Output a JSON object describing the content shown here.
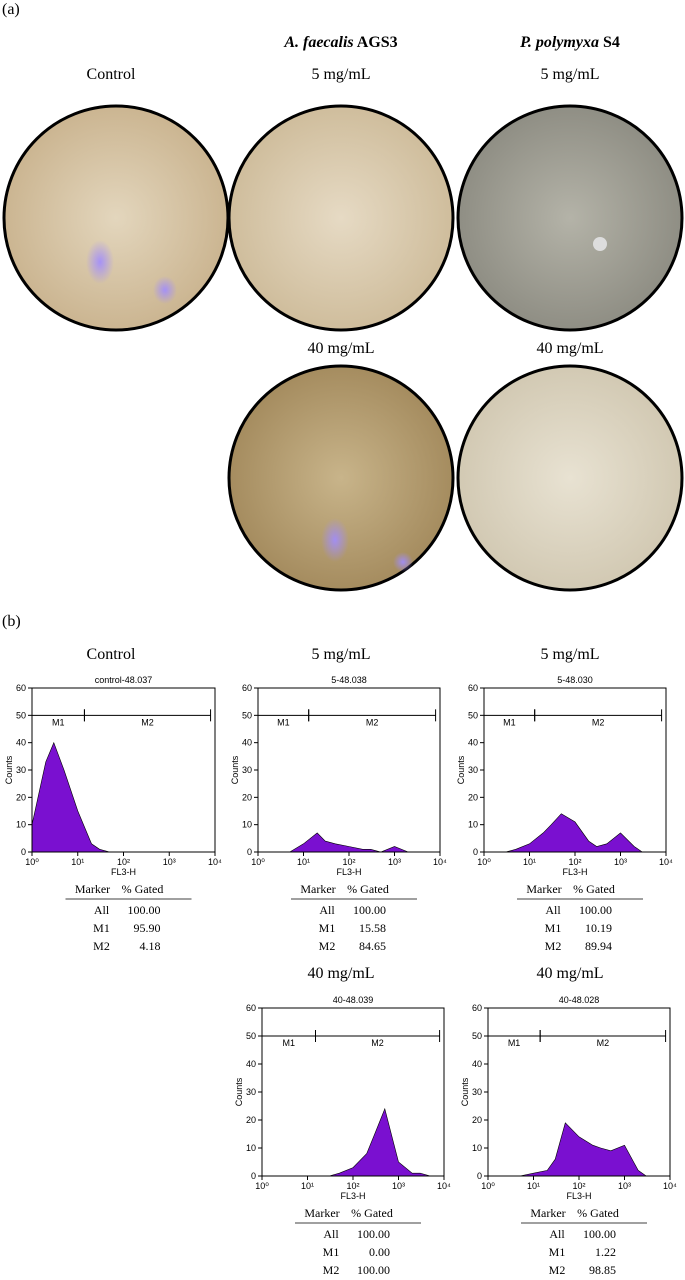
{
  "panel_a": {
    "label": "(a)",
    "headers": [
      {
        "species": "A. faecalis",
        "strain": "AGS3"
      },
      {
        "species": "P. polymyxa",
        "strain": "S4"
      }
    ],
    "images": [
      {
        "label": "Control"
      },
      {
        "label": "5 mg/mL"
      },
      {
        "label": "5 mg/mL"
      },
      {
        "label": "40 mg/mL"
      },
      {
        "label": "40 mg/mL"
      }
    ]
  },
  "panel_b": {
    "label": "(b)"
  },
  "chart_data": [
    {
      "type": "area",
      "heading": "Control",
      "title": "control-48.037",
      "x_label": "FL3-H",
      "y_label": "Counts",
      "color": "#7a10d0",
      "log_x": true,
      "x": [
        1,
        2,
        3,
        5,
        10,
        20,
        30,
        50,
        100,
        200,
        300,
        500,
        1000,
        2000,
        3000,
        5000,
        10000
      ],
      "values": [
        10,
        33,
        40,
        30,
        15,
        3,
        1,
        0,
        0,
        0,
        0,
        0,
        0,
        0,
        0,
        0,
        0
      ],
      "xlim": [
        1,
        10000
      ],
      "ylim": [
        0,
        60
      ],
      "yticks": [
        0,
        10,
        20,
        30,
        40,
        50,
        60
      ],
      "xticks": [
        {
          "value": 1,
          "label": "10⁰"
        },
        {
          "value": 10,
          "label": "10¹"
        },
        {
          "value": 100,
          "label": "10²"
        },
        {
          "value": 1000,
          "label": "10³"
        },
        {
          "value": 10000,
          "label": "10⁴"
        }
      ],
      "gates": [
        {
          "name": "M1",
          "range": [
            1,
            14
          ]
        },
        {
          "name": "M2",
          "range": [
            14,
            8000
          ]
        }
      ],
      "table": {
        "header": [
          "Marker",
          "% Gated"
        ],
        "rows": [
          [
            "All",
            "100.00"
          ],
          [
            "M1",
            "95.90"
          ],
          [
            "M2",
            "4.18"
          ]
        ]
      }
    },
    {
      "type": "area",
      "heading": "5 mg/mL",
      "title": "5-48.038",
      "x_label": "FL3-H",
      "y_label": "Counts",
      "color": "#7a10d0",
      "log_x": true,
      "x": [
        1,
        2,
        3,
        5,
        10,
        20,
        30,
        50,
        100,
        200,
        300,
        500,
        1000,
        2000,
        3000,
        5000,
        10000
      ],
      "values": [
        0,
        0,
        0,
        0,
        3,
        7,
        4,
        3,
        2,
        1,
        1,
        0,
        2,
        0,
        0,
        0,
        0
      ],
      "xlim": [
        1,
        10000
      ],
      "ylim": [
        0,
        60
      ],
      "yticks": [
        0,
        10,
        20,
        30,
        40,
        50,
        60
      ],
      "xticks": [
        {
          "value": 1,
          "label": "10⁰"
        },
        {
          "value": 10,
          "label": "10¹"
        },
        {
          "value": 100,
          "label": "10²"
        },
        {
          "value": 1000,
          "label": "10³"
        },
        {
          "value": 10000,
          "label": "10⁴"
        }
      ],
      "gates": [
        {
          "name": "M1",
          "range": [
            1,
            13
          ]
        },
        {
          "name": "M2",
          "range": [
            13,
            8000
          ]
        }
      ],
      "table": {
        "header": [
          "Marker",
          "% Gated"
        ],
        "rows": [
          [
            "All",
            "100.00"
          ],
          [
            "M1",
            "15.58"
          ],
          [
            "M2",
            "84.65"
          ]
        ]
      }
    },
    {
      "type": "area",
      "heading": "5 mg/mL",
      "title": "5-48.030",
      "x_label": "FL3-H",
      "y_label": "Counts",
      "color": "#7a10d0",
      "log_x": true,
      "x": [
        1,
        2,
        3,
        5,
        10,
        20,
        30,
        50,
        100,
        200,
        300,
        500,
        1000,
        2000,
        3000,
        5000,
        10000
      ],
      "values": [
        0,
        0,
        0,
        1,
        3,
        7,
        10,
        14,
        11,
        4,
        2,
        3,
        7,
        2,
        0,
        0,
        0
      ],
      "xlim": [
        1,
        10000
      ],
      "ylim": [
        0,
        60
      ],
      "yticks": [
        0,
        10,
        20,
        30,
        40,
        50,
        60
      ],
      "xticks": [
        {
          "value": 1,
          "label": "10⁰"
        },
        {
          "value": 10,
          "label": "10¹"
        },
        {
          "value": 100,
          "label": "10²"
        },
        {
          "value": 1000,
          "label": "10³"
        },
        {
          "value": 10000,
          "label": "10⁴"
        }
      ],
      "gates": [
        {
          "name": "M1",
          "range": [
            1,
            13
          ]
        },
        {
          "name": "M2",
          "range": [
            13,
            8000
          ]
        }
      ],
      "table": {
        "header": [
          "Marker",
          "% Gated"
        ],
        "rows": [
          [
            "All",
            "100.00"
          ],
          [
            "M1",
            "10.19"
          ],
          [
            "M2",
            "89.94"
          ]
        ]
      }
    },
    {
      "type": "area",
      "heading": "40 mg/mL",
      "title": "40-48.039",
      "x_label": "FL3-H",
      "y_label": "Counts",
      "color": "#7a10d0",
      "log_x": true,
      "x": [
        1,
        2,
        3,
        5,
        10,
        20,
        30,
        50,
        100,
        200,
        300,
        500,
        1000,
        2000,
        3000,
        5000,
        10000
      ],
      "values": [
        0,
        0,
        0,
        0,
        0,
        0,
        0,
        1,
        3,
        8,
        15,
        24,
        5,
        1,
        1,
        0,
        0
      ],
      "xlim": [
        1,
        10000
      ],
      "ylim": [
        0,
        60
      ],
      "yticks": [
        0,
        10,
        20,
        30,
        40,
        50,
        60
      ],
      "xticks": [
        {
          "value": 1,
          "label": "10⁰"
        },
        {
          "value": 10,
          "label": "10¹"
        },
        {
          "value": 100,
          "label": "10²"
        },
        {
          "value": 1000,
          "label": "10³"
        },
        {
          "value": 10000,
          "label": "10⁴"
        }
      ],
      "gates": [
        {
          "name": "M1",
          "range": [
            1,
            15
          ]
        },
        {
          "name": "M2",
          "range": [
            15,
            8000
          ]
        }
      ],
      "table": {
        "header": [
          "Marker",
          "% Gated"
        ],
        "rows": [
          [
            "All",
            "100.00"
          ],
          [
            "M1",
            "0.00"
          ],
          [
            "M2",
            "100.00"
          ]
        ]
      }
    },
    {
      "type": "area",
      "heading": "40 mg/mL",
      "title": "40-48.028",
      "x_label": "FL3-H",
      "y_label": "Counts",
      "color": "#7a10d0",
      "log_x": true,
      "x": [
        1,
        2,
        3,
        5,
        10,
        20,
        30,
        50,
        100,
        200,
        300,
        500,
        1000,
        2000,
        3000,
        5000,
        10000
      ],
      "values": [
        0,
        0,
        0,
        0,
        1,
        2,
        6,
        19,
        14,
        11,
        10,
        9,
        11,
        2,
        0,
        0,
        0
      ],
      "xlim": [
        1,
        10000
      ],
      "ylim": [
        0,
        60
      ],
      "yticks": [
        0,
        10,
        20,
        30,
        40,
        50,
        60
      ],
      "xticks": [
        {
          "value": 1,
          "label": "10⁰"
        },
        {
          "value": 10,
          "label": "10¹"
        },
        {
          "value": 100,
          "label": "10²"
        },
        {
          "value": 1000,
          "label": "10³"
        },
        {
          "value": 10000,
          "label": "10⁴"
        }
      ],
      "gates": [
        {
          "name": "M1",
          "range": [
            1,
            14
          ]
        },
        {
          "name": "M2",
          "range": [
            14,
            8000
          ]
        }
      ],
      "table": {
        "header": [
          "Marker",
          "% Gated"
        ],
        "rows": [
          [
            "All",
            "100.00"
          ],
          [
            "M1",
            "1.22"
          ],
          [
            "M2",
            "98.85"
          ]
        ]
      }
    }
  ]
}
